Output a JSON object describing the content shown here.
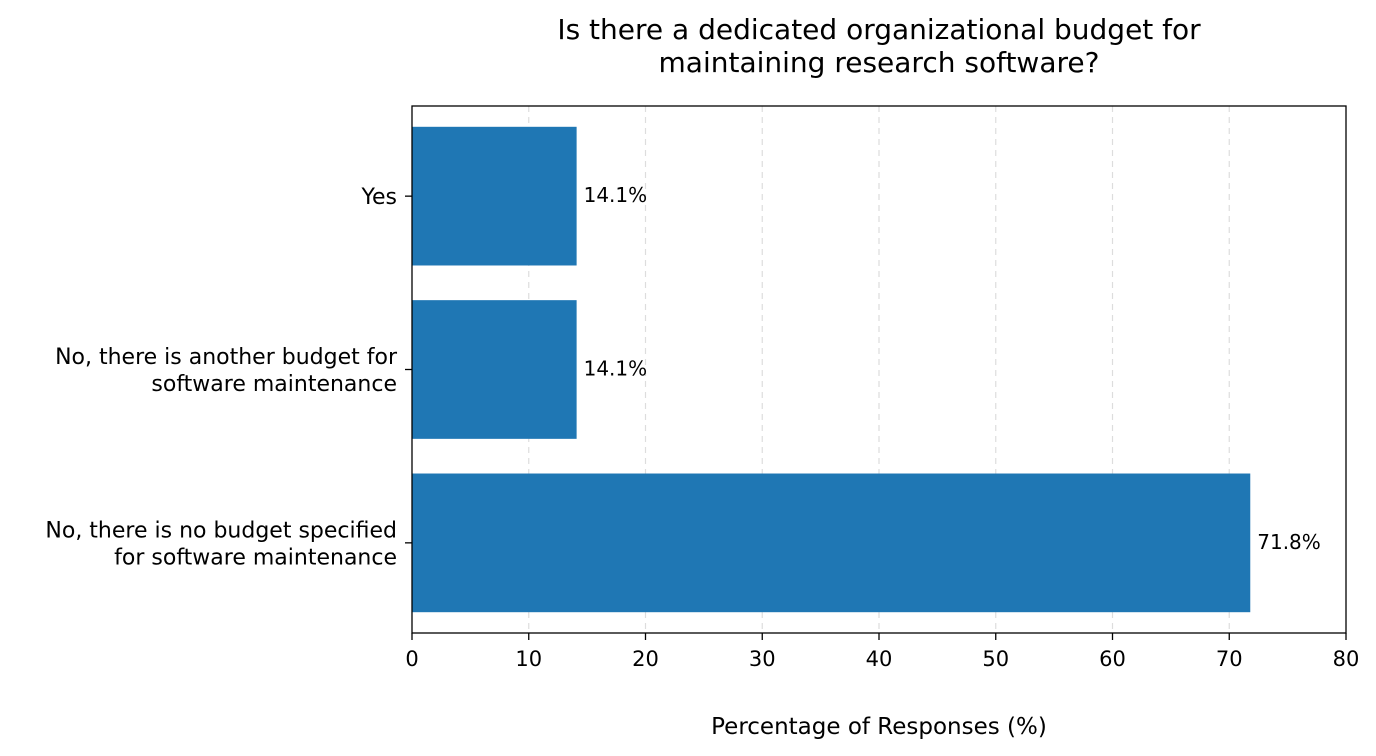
{
  "chart_data": {
    "type": "bar",
    "orientation": "horizontal",
    "title_lines": [
      "Is there a dedicated organizational budget for",
      "maintaining research software?"
    ],
    "xlabel": "Percentage of Responses (%)",
    "ylabel": "",
    "xlim": [
      0,
      80
    ],
    "xticks": [
      0,
      10,
      20,
      30,
      40,
      50,
      60,
      70,
      80
    ],
    "grid": "vertical-dashed",
    "categories": [
      {
        "lines": [
          "Yes"
        ],
        "value": 14.1,
        "label": "14.1%"
      },
      {
        "lines": [
          "No, there is another budget for",
          "software maintenance"
        ],
        "value": 14.1,
        "label": "14.1%"
      },
      {
        "lines": [
          "No, there is no budget specified",
          "for software maintenance"
        ],
        "value": 71.8,
        "label": "71.8%"
      }
    ],
    "colors": {
      "bar": "#1f77b4",
      "grid": "#dddddd",
      "axes": "#000000"
    }
  }
}
